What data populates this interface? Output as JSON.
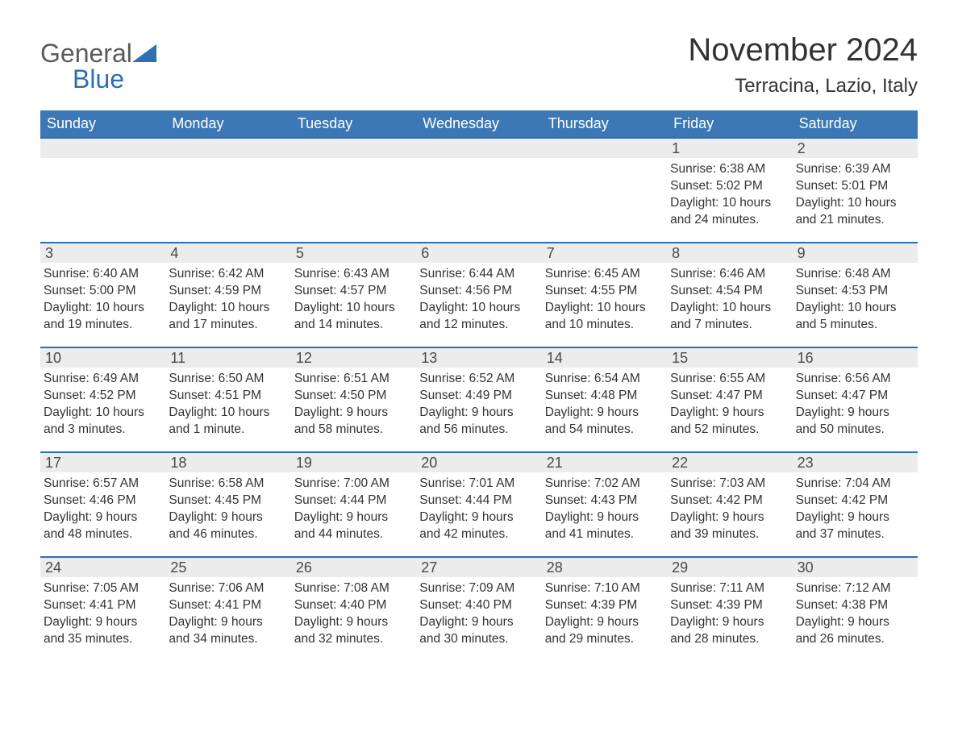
{
  "brand": {
    "word1": "General",
    "word2": "Blue",
    "color_general": "#5a5a5a",
    "color_blue": "#2f6eb0",
    "triangle_fill": "#2f6eb0"
  },
  "title": "November 2024",
  "location": "Terracina, Lazio, Italy",
  "style": {
    "weekday_bg": "#3b78b5",
    "weekday_fg": "#ffffff",
    "daybar_bg": "#ececec",
    "week_border": "#2f6eb0",
    "page_bg": "#ffffff",
    "text_color": "#333333",
    "title_fontsize": 40,
    "location_fontsize": 24,
    "weekday_fontsize": 18,
    "daynum_fontsize": 18,
    "body_fontsize": 15.5,
    "columns": 7
  },
  "weekdays": [
    "Sunday",
    "Monday",
    "Tuesday",
    "Wednesday",
    "Thursday",
    "Friday",
    "Saturday"
  ],
  "weeks": [
    [
      {
        "day": "",
        "sunrise": "",
        "sunset": "",
        "daylight": ""
      },
      {
        "day": "",
        "sunrise": "",
        "sunset": "",
        "daylight": ""
      },
      {
        "day": "",
        "sunrise": "",
        "sunset": "",
        "daylight": ""
      },
      {
        "day": "",
        "sunrise": "",
        "sunset": "",
        "daylight": ""
      },
      {
        "day": "",
        "sunrise": "",
        "sunset": "",
        "daylight": ""
      },
      {
        "day": "1",
        "sunrise": "Sunrise: 6:38 AM",
        "sunset": "Sunset: 5:02 PM",
        "daylight": "Daylight: 10 hours and 24 minutes."
      },
      {
        "day": "2",
        "sunrise": "Sunrise: 6:39 AM",
        "sunset": "Sunset: 5:01 PM",
        "daylight": "Daylight: 10 hours and 21 minutes."
      }
    ],
    [
      {
        "day": "3",
        "sunrise": "Sunrise: 6:40 AM",
        "sunset": "Sunset: 5:00 PM",
        "daylight": "Daylight: 10 hours and 19 minutes."
      },
      {
        "day": "4",
        "sunrise": "Sunrise: 6:42 AM",
        "sunset": "Sunset: 4:59 PM",
        "daylight": "Daylight: 10 hours and 17 minutes."
      },
      {
        "day": "5",
        "sunrise": "Sunrise: 6:43 AM",
        "sunset": "Sunset: 4:57 PM",
        "daylight": "Daylight: 10 hours and 14 minutes."
      },
      {
        "day": "6",
        "sunrise": "Sunrise: 6:44 AM",
        "sunset": "Sunset: 4:56 PM",
        "daylight": "Daylight: 10 hours and 12 minutes."
      },
      {
        "day": "7",
        "sunrise": "Sunrise: 6:45 AM",
        "sunset": "Sunset: 4:55 PM",
        "daylight": "Daylight: 10 hours and 10 minutes."
      },
      {
        "day": "8",
        "sunrise": "Sunrise: 6:46 AM",
        "sunset": "Sunset: 4:54 PM",
        "daylight": "Daylight: 10 hours and 7 minutes."
      },
      {
        "day": "9",
        "sunrise": "Sunrise: 6:48 AM",
        "sunset": "Sunset: 4:53 PM",
        "daylight": "Daylight: 10 hours and 5 minutes."
      }
    ],
    [
      {
        "day": "10",
        "sunrise": "Sunrise: 6:49 AM",
        "sunset": "Sunset: 4:52 PM",
        "daylight": "Daylight: 10 hours and 3 minutes."
      },
      {
        "day": "11",
        "sunrise": "Sunrise: 6:50 AM",
        "sunset": "Sunset: 4:51 PM",
        "daylight": "Daylight: 10 hours and 1 minute."
      },
      {
        "day": "12",
        "sunrise": "Sunrise: 6:51 AM",
        "sunset": "Sunset: 4:50 PM",
        "daylight": "Daylight: 9 hours and 58 minutes."
      },
      {
        "day": "13",
        "sunrise": "Sunrise: 6:52 AM",
        "sunset": "Sunset: 4:49 PM",
        "daylight": "Daylight: 9 hours and 56 minutes."
      },
      {
        "day": "14",
        "sunrise": "Sunrise: 6:54 AM",
        "sunset": "Sunset: 4:48 PM",
        "daylight": "Daylight: 9 hours and 54 minutes."
      },
      {
        "day": "15",
        "sunrise": "Sunrise: 6:55 AM",
        "sunset": "Sunset: 4:47 PM",
        "daylight": "Daylight: 9 hours and 52 minutes."
      },
      {
        "day": "16",
        "sunrise": "Sunrise: 6:56 AM",
        "sunset": "Sunset: 4:47 PM",
        "daylight": "Daylight: 9 hours and 50 minutes."
      }
    ],
    [
      {
        "day": "17",
        "sunrise": "Sunrise: 6:57 AM",
        "sunset": "Sunset: 4:46 PM",
        "daylight": "Daylight: 9 hours and 48 minutes."
      },
      {
        "day": "18",
        "sunrise": "Sunrise: 6:58 AM",
        "sunset": "Sunset: 4:45 PM",
        "daylight": "Daylight: 9 hours and 46 minutes."
      },
      {
        "day": "19",
        "sunrise": "Sunrise: 7:00 AM",
        "sunset": "Sunset: 4:44 PM",
        "daylight": "Daylight: 9 hours and 44 minutes."
      },
      {
        "day": "20",
        "sunrise": "Sunrise: 7:01 AM",
        "sunset": "Sunset: 4:44 PM",
        "daylight": "Daylight: 9 hours and 42 minutes."
      },
      {
        "day": "21",
        "sunrise": "Sunrise: 7:02 AM",
        "sunset": "Sunset: 4:43 PM",
        "daylight": "Daylight: 9 hours and 41 minutes."
      },
      {
        "day": "22",
        "sunrise": "Sunrise: 7:03 AM",
        "sunset": "Sunset: 4:42 PM",
        "daylight": "Daylight: 9 hours and 39 minutes."
      },
      {
        "day": "23",
        "sunrise": "Sunrise: 7:04 AM",
        "sunset": "Sunset: 4:42 PM",
        "daylight": "Daylight: 9 hours and 37 minutes."
      }
    ],
    [
      {
        "day": "24",
        "sunrise": "Sunrise: 7:05 AM",
        "sunset": "Sunset: 4:41 PM",
        "daylight": "Daylight: 9 hours and 35 minutes."
      },
      {
        "day": "25",
        "sunrise": "Sunrise: 7:06 AM",
        "sunset": "Sunset: 4:41 PM",
        "daylight": "Daylight: 9 hours and 34 minutes."
      },
      {
        "day": "26",
        "sunrise": "Sunrise: 7:08 AM",
        "sunset": "Sunset: 4:40 PM",
        "daylight": "Daylight: 9 hours and 32 minutes."
      },
      {
        "day": "27",
        "sunrise": "Sunrise: 7:09 AM",
        "sunset": "Sunset: 4:40 PM",
        "daylight": "Daylight: 9 hours and 30 minutes."
      },
      {
        "day": "28",
        "sunrise": "Sunrise: 7:10 AM",
        "sunset": "Sunset: 4:39 PM",
        "daylight": "Daylight: 9 hours and 29 minutes."
      },
      {
        "day": "29",
        "sunrise": "Sunrise: 7:11 AM",
        "sunset": "Sunset: 4:39 PM",
        "daylight": "Daylight: 9 hours and 28 minutes."
      },
      {
        "day": "30",
        "sunrise": "Sunrise: 7:12 AM",
        "sunset": "Sunset: 4:38 PM",
        "daylight": "Daylight: 9 hours and 26 minutes."
      }
    ]
  ]
}
